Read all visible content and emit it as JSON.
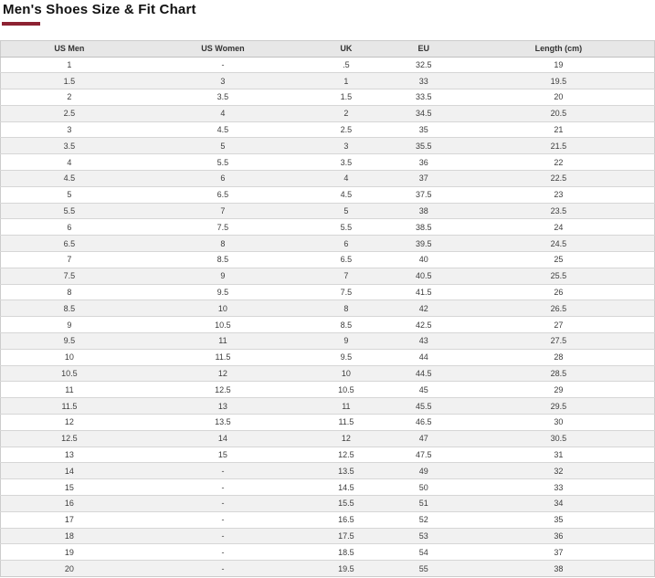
{
  "page": {
    "title": "Men's Shoes Size & Fit Chart"
  },
  "theme": {
    "accent_bar_color": "#8d2232",
    "header_row_bg": "#e7e7e7",
    "stripe_row_bg": "#f1f1f1",
    "border_color": "#cccccc",
    "text_color": "#3d3d3d"
  },
  "chart_data": {
    "type": "table",
    "title": "Men's Shoes Size & Fit Chart",
    "columns": [
      "US Men",
      "US Women",
      "UK",
      "EU",
      "Length (cm)"
    ],
    "rows": [
      [
        "1",
        "-",
        ".5",
        "32.5",
        "19"
      ],
      [
        "1.5",
        "3",
        "1",
        "33",
        "19.5"
      ],
      [
        "2",
        "3.5",
        "1.5",
        "33.5",
        "20"
      ],
      [
        "2.5",
        "4",
        "2",
        "34.5",
        "20.5"
      ],
      [
        "3",
        "4.5",
        "2.5",
        "35",
        "21"
      ],
      [
        "3.5",
        "5",
        "3",
        "35.5",
        "21.5"
      ],
      [
        "4",
        "5.5",
        "3.5",
        "36",
        "22"
      ],
      [
        "4.5",
        "6",
        "4",
        "37",
        "22.5"
      ],
      [
        "5",
        "6.5",
        "4.5",
        "37.5",
        "23"
      ],
      [
        "5.5",
        "7",
        "5",
        "38",
        "23.5"
      ],
      [
        "6",
        "7.5",
        "5.5",
        "38.5",
        "24"
      ],
      [
        "6.5",
        "8",
        "6",
        "39.5",
        "24.5"
      ],
      [
        "7",
        "8.5",
        "6.5",
        "40",
        "25"
      ],
      [
        "7.5",
        "9",
        "7",
        "40.5",
        "25.5"
      ],
      [
        "8",
        "9.5",
        "7.5",
        "41.5",
        "26"
      ],
      [
        "8.5",
        "10",
        "8",
        "42",
        "26.5"
      ],
      [
        "9",
        "10.5",
        "8.5",
        "42.5",
        "27"
      ],
      [
        "9.5",
        "11",
        "9",
        "43",
        "27.5"
      ],
      [
        "10",
        "11.5",
        "9.5",
        "44",
        "28"
      ],
      [
        "10.5",
        "12",
        "10",
        "44.5",
        "28.5"
      ],
      [
        "11",
        "12.5",
        "10.5",
        "45",
        "29"
      ],
      [
        "11.5",
        "13",
        "11",
        "45.5",
        "29.5"
      ],
      [
        "12",
        "13.5",
        "11.5",
        "46.5",
        "30"
      ],
      [
        "12.5",
        "14",
        "12",
        "47",
        "30.5"
      ],
      [
        "13",
        "15",
        "12.5",
        "47.5",
        "31"
      ],
      [
        "14",
        "-",
        "13.5",
        "49",
        "32"
      ],
      [
        "15",
        "-",
        "14.5",
        "50",
        "33"
      ],
      [
        "16",
        "-",
        "15.5",
        "51",
        "34"
      ],
      [
        "17",
        "-",
        "16.5",
        "52",
        "35"
      ],
      [
        "18",
        "-",
        "17.5",
        "53",
        "36"
      ],
      [
        "19",
        "-",
        "18.5",
        "54",
        "37"
      ],
      [
        "20",
        "-",
        "19.5",
        "55",
        "38"
      ]
    ]
  }
}
